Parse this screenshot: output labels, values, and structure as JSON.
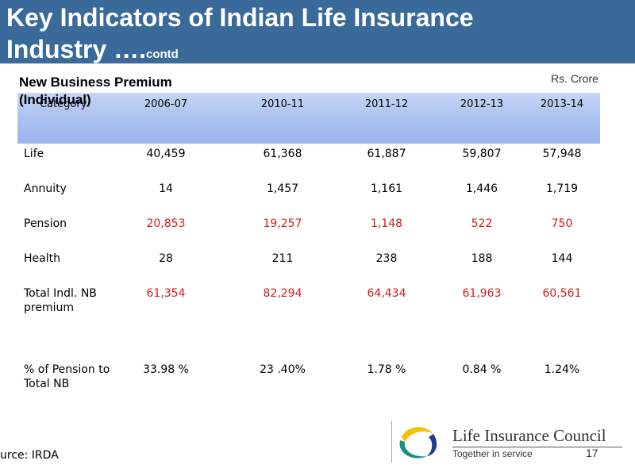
{
  "header": {
    "title_line1": "Key Indicators of Indian Life Insurance",
    "title_line2": "Industry ….",
    "title_suffix": "contd",
    "bg_color": "#3a6a99"
  },
  "subtitle": "New Business Premium (Individual)",
  "units": "Rs. Crore",
  "table": {
    "category_header": "Category",
    "years": [
      "2006-07",
      "2010-11",
      "2011-12",
      "2012-13",
      "2013-14"
    ],
    "rows": [
      {
        "label": "Life",
        "values": [
          "40,459",
          "61,368",
          "61,887",
          "59,807",
          "57,948"
        ],
        "highlight": false
      },
      {
        "label": "Annuity",
        "values": [
          "14",
          "1,457",
          "1,161",
          "1,446",
          "1,719"
        ],
        "highlight": false
      },
      {
        "label": "Pension",
        "values": [
          "20,853",
          "19,257",
          "1,148",
          "522",
          "750"
        ],
        "highlight": true
      },
      {
        "label": "Health",
        "values": [
          "28",
          "211",
          "238",
          "188",
          "144"
        ],
        "highlight": false
      },
      {
        "label": "Total  Indl. NB premium",
        "values": [
          "61,354",
          "82,294",
          "64,434",
          "61,963",
          "60,561"
        ],
        "highlight": true
      },
      {
        "label": "% of Pension to Total NB",
        "values": [
          "33.98 %",
          "23 .40%",
          "1.78 %",
          "0.84 %",
          "1.24%"
        ],
        "highlight": false
      }
    ],
    "highlight_color": "#d11a1a"
  },
  "footer": {
    "source": "urce: IRDA",
    "logo_title": "Life Insurance Council",
    "logo_tagline": "Together in service",
    "page_number": "17"
  }
}
